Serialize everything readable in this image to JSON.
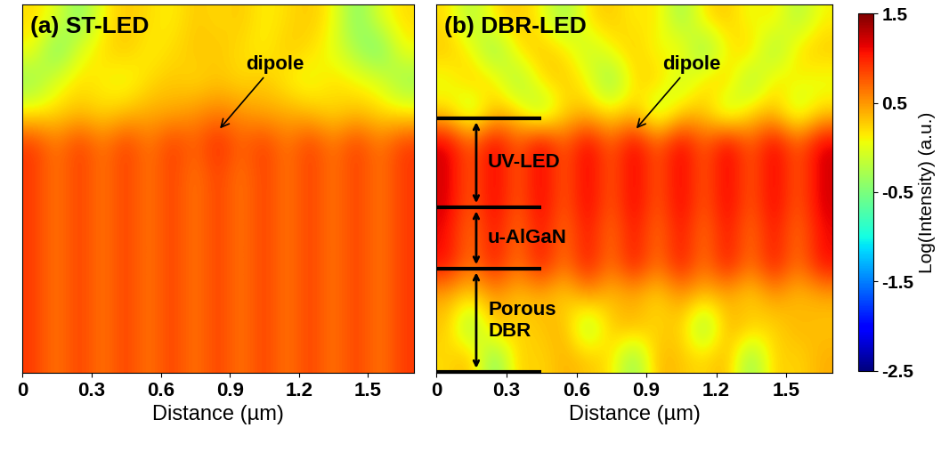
{
  "chart_data": [
    {
      "type": "heatmap",
      "title": "(a) ST-LED",
      "x_label": "Distance (µm)",
      "xlim": [
        0,
        1.7
      ],
      "xticks": [
        0,
        0.3,
        0.6,
        0.9,
        1.2,
        1.5
      ],
      "tick_labels": "x",
      "annotations": [
        {
          "text": "dipole",
          "x": 0.85
        }
      ],
      "cells": [
        [
          0.2,
          0.0,
          -0.5,
          0.1,
          0.3,
          0.2,
          0.1,
          0.3,
          0.2,
          0.3,
          0.1,
          0.2,
          0.3,
          0.1,
          -0.5,
          0.0,
          0.2
        ],
        [
          0.1,
          -0.6,
          0.0,
          0.2,
          0.3,
          0.1,
          0.2,
          0.3,
          0.3,
          0.2,
          0.1,
          0.3,
          0.2,
          0.0,
          -0.3,
          -0.6,
          0.1
        ],
        [
          -0.4,
          0.0,
          0.2,
          0.1,
          0.0,
          0.2,
          0.3,
          0.2,
          0.3,
          0.2,
          0.3,
          0.1,
          0.0,
          0.2,
          0.1,
          0.0,
          -0.4
        ],
        [
          0.1,
          0.2,
          0.3,
          0.2,
          0.3,
          0.4,
          0.4,
          0.5,
          0.6,
          0.5,
          0.4,
          0.4,
          0.3,
          0.2,
          0.3,
          0.2,
          0.1
        ],
        [
          0.9,
          0.6,
          0.9,
          0.6,
          0.9,
          0.6,
          0.9,
          0.7,
          1.0,
          0.7,
          0.9,
          0.6,
          0.9,
          0.6,
          0.9,
          0.6,
          0.9
        ],
        [
          0.9,
          0.6,
          0.9,
          0.6,
          0.9,
          0.6,
          0.9,
          0.6,
          0.9,
          0.6,
          0.9,
          0.6,
          0.9,
          0.6,
          0.9,
          0.6,
          0.9
        ],
        [
          0.9,
          0.6,
          0.9,
          0.6,
          0.9,
          0.6,
          0.9,
          0.6,
          0.9,
          0.6,
          0.9,
          0.6,
          0.9,
          0.6,
          0.9,
          0.6,
          0.9
        ],
        [
          0.9,
          0.6,
          0.9,
          0.6,
          0.9,
          0.6,
          0.9,
          0.6,
          0.9,
          0.6,
          0.9,
          0.6,
          0.9,
          0.6,
          0.9,
          0.6,
          0.9
        ],
        [
          0.9,
          0.6,
          0.9,
          0.6,
          0.9,
          0.6,
          0.9,
          0.6,
          0.9,
          0.6,
          0.9,
          0.6,
          0.9,
          0.6,
          0.9,
          0.6,
          0.9
        ],
        [
          0.9,
          0.6,
          0.9,
          0.6,
          0.9,
          0.6,
          0.9,
          0.6,
          0.9,
          0.6,
          0.9,
          0.6,
          0.9,
          0.6,
          0.9,
          0.6,
          0.9
        ],
        [
          0.9,
          0.6,
          0.9,
          0.6,
          0.9,
          0.6,
          0.9,
          0.6,
          0.9,
          0.6,
          0.9,
          0.6,
          0.9,
          0.6,
          0.9,
          0.6,
          0.9
        ],
        [
          0.9,
          0.6,
          0.9,
          0.6,
          0.9,
          0.6,
          0.9,
          0.6,
          0.9,
          0.6,
          0.9,
          0.6,
          0.9,
          0.6,
          0.9,
          0.6,
          0.9
        ]
      ]
    },
    {
      "type": "heatmap",
      "title": "(b) DBR-LED",
      "x_label": "Distance (µm)",
      "xlim": [
        0,
        1.7
      ],
      "xticks": [
        0,
        0.3,
        0.6,
        0.9,
        1.2,
        1.5
      ],
      "tick_labels": "x",
      "annotations": [
        {
          "text": "dipole",
          "x": 0.85
        }
      ],
      "layers": [
        "UV-LED",
        "u-AlGaN",
        "Porous\nDBR"
      ],
      "cells": [
        [
          0.2,
          -0.3,
          0.2,
          0.3,
          0.1,
          -0.4,
          0.2,
          0.3,
          0.1,
          0.2,
          -0.4,
          0.2,
          0.3,
          0.0,
          0.2,
          -0.3,
          0.1
        ],
        [
          0.3,
          0.1,
          -0.5,
          0.2,
          0.3,
          0.2,
          -0.2,
          0.1,
          0.3,
          0.0,
          0.2,
          -0.5,
          0.1,
          0.3,
          -0.4,
          0.2,
          0.3
        ],
        [
          0.0,
          0.3,
          0.2,
          -0.4,
          0.2,
          0.3,
          0.1,
          -0.5,
          0.2,
          0.3,
          -0.2,
          0.2,
          0.3,
          -0.4,
          0.2,
          0.1,
          0.0
        ],
        [
          0.2,
          -0.3,
          0.3,
          0.2,
          -0.4,
          0.2,
          0.3,
          0.1,
          0.3,
          -0.3,
          0.2,
          0.3,
          -0.3,
          0.2,
          0.3,
          -0.2,
          0.2
        ],
        [
          1.2,
          0.7,
          1.2,
          0.7,
          1.2,
          0.7,
          1.2,
          0.7,
          1.2,
          0.7,
          1.2,
          0.7,
          1.2,
          0.7,
          1.2,
          0.7,
          1.2
        ],
        [
          1.2,
          0.7,
          1.2,
          0.7,
          1.2,
          0.7,
          1.2,
          0.7,
          1.2,
          0.7,
          1.2,
          0.7,
          1.2,
          0.7,
          1.2,
          0.7,
          1.2
        ],
        [
          1.2,
          0.7,
          1.2,
          0.7,
          1.2,
          0.7,
          1.2,
          0.7,
          1.2,
          0.7,
          1.2,
          0.7,
          1.2,
          0.7,
          1.2,
          0.7,
          1.2
        ],
        [
          1.1,
          0.6,
          1.1,
          0.6,
          1.1,
          0.6,
          1.1,
          0.6,
          1.1,
          0.6,
          1.1,
          0.6,
          1.1,
          0.6,
          1.1,
          0.6,
          1.1
        ],
        [
          1.1,
          0.6,
          1.1,
          0.6,
          1.1,
          0.6,
          1.1,
          0.6,
          1.1,
          0.6,
          1.1,
          0.6,
          1.1,
          0.6,
          1.1,
          0.6,
          1.1
        ],
        [
          0.4,
          0.2,
          0.5,
          0.3,
          0.4,
          0.2,
          0.5,
          0.3,
          0.4,
          0.2,
          0.5,
          0.3,
          0.4,
          0.2,
          0.5,
          0.3,
          0.4
        ],
        [
          0.3,
          -0.5,
          0.4,
          0.2,
          0.3,
          0.4,
          -0.4,
          0.3,
          0.4,
          0.2,
          0.3,
          -0.5,
          0.4,
          0.3,
          0.2,
          0.4,
          0.3
        ],
        [
          0.2,
          0.4,
          -0.6,
          0.3,
          0.2,
          0.4,
          0.3,
          0.2,
          -0.5,
          0.4,
          0.3,
          0.2,
          0.4,
          -0.5,
          0.3,
          0.2,
          0.4
        ]
      ]
    }
  ],
  "colorbar": {
    "label": "Log(Intensity) (a.u.)",
    "range": [
      -2.5,
      1.5
    ],
    "ticks": [
      1.5,
      0.5,
      -0.5,
      -1.5,
      -2.5
    ]
  }
}
